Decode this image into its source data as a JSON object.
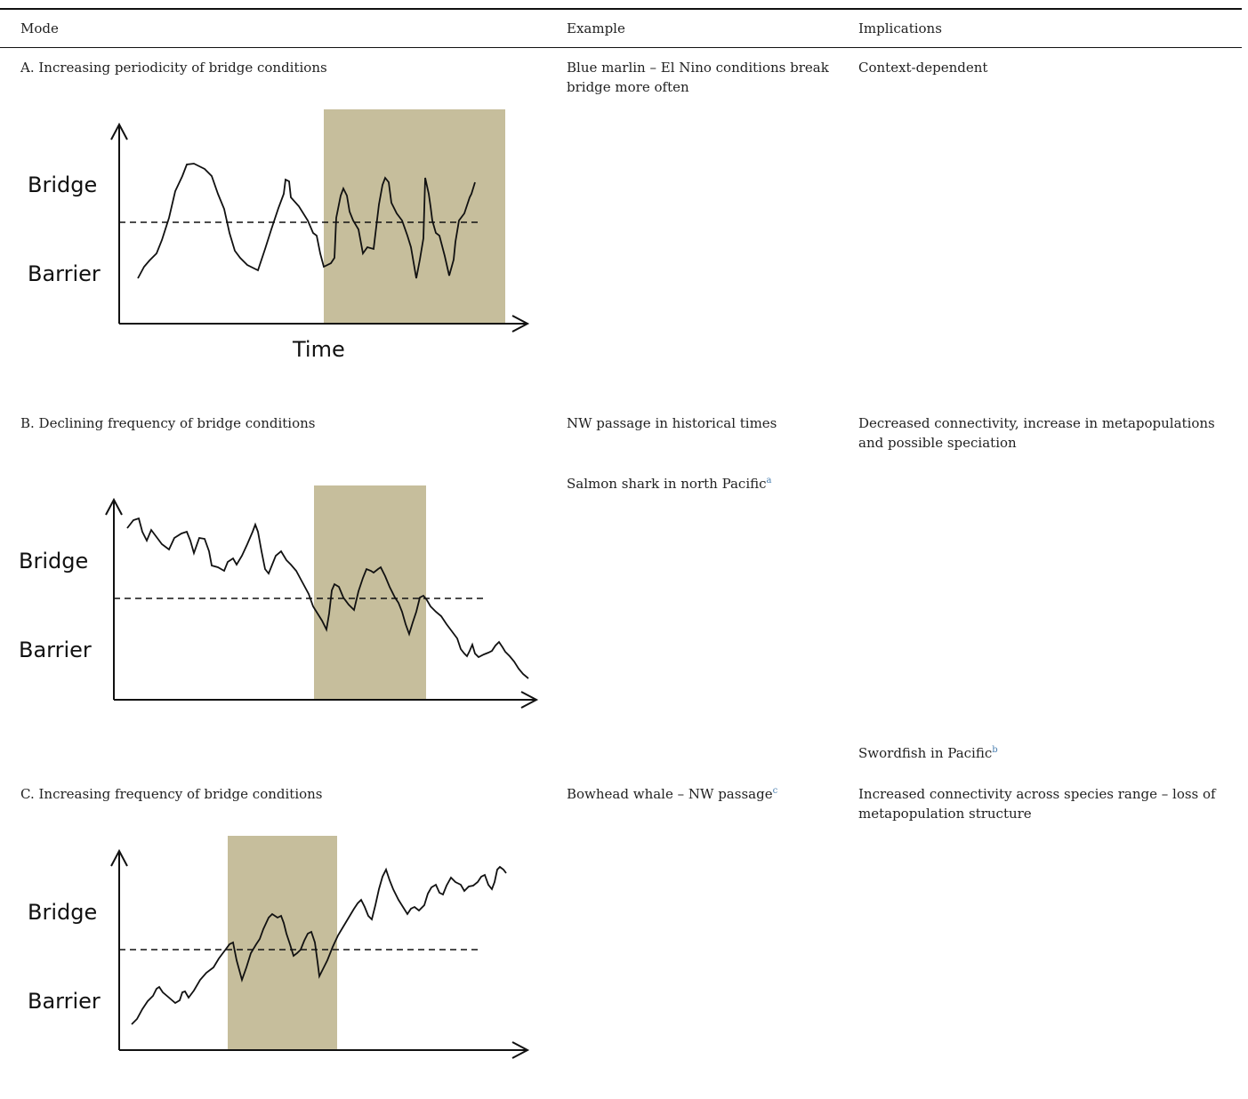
{
  "table": {
    "headers": {
      "mode": "Mode",
      "example": "Example",
      "implications": "Implications"
    },
    "rows": [
      {
        "mode": "A. Increasing periodicity of bridge conditions",
        "example": "Blue marlin – El Nino conditions break bridge more often",
        "implications": "Context-dependent",
        "figure": {
          "y_top_label": "Bridge",
          "y_bottom_label": "Barrier",
          "x_label": "Time"
        }
      },
      {
        "mode": "B. Declining frequency of bridge conditions",
        "example": "NW passage in historical times",
        "example_2": "Salmon shark in north Pacific",
        "example_2_footnote": "a",
        "implications": "Decreased connectivity, increase in metapopulations and possible speciation",
        "implications_2": "Swordfish in Pacific",
        "implications_2_footnote": "b",
        "figure": {
          "y_top_label": "Bridge",
          "y_bottom_label": "Barrier"
        }
      },
      {
        "mode": "C. Increasing frequency of bridge conditions",
        "example": "Bowhead whale – NW passage",
        "example_footnote": "c",
        "implications": "Increased connectivity across species range – loss of metapopulation structure",
        "figure": {
          "y_top_label": "Bridge",
          "y_bottom_label": "Barrier"
        }
      }
    ]
  },
  "colors": {
    "shade": "#c6be9c",
    "line": "#111111",
    "rule": "#111111",
    "footnote": "#4a7fb0"
  }
}
